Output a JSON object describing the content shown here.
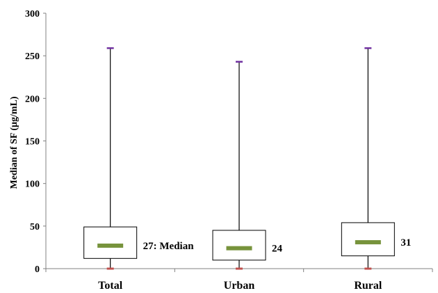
{
  "chart_data": {
    "type": "box",
    "title": "",
    "xlabel": "",
    "ylabel": "Median of SF (μg/mL)",
    "ylim": [
      0,
      300
    ],
    "yticks": [
      0,
      50,
      100,
      150,
      200,
      250,
      300
    ],
    "categories": [
      "Total",
      "Urban",
      "Rural"
    ],
    "boxes": [
      {
        "category": "Total",
        "min": 0,
        "q1": 12,
        "median": 27,
        "q3": 49,
        "max": 259,
        "label": "27:  Median"
      },
      {
        "category": "Urban",
        "min": 0,
        "q1": 10,
        "median": 24,
        "q3": 45,
        "max": 243,
        "label": "24"
      },
      {
        "category": "Rural",
        "min": 0,
        "q1": 15,
        "median": 31,
        "q3": 54,
        "max": 259,
        "label": "31"
      }
    ],
    "grid": false,
    "legend": "none",
    "colors": {
      "median_bar": "#77933c",
      "max_marker": "#7030a0",
      "min_marker": "#c0504d",
      "axis": "#808080",
      "box_stroke": "#000000"
    }
  }
}
